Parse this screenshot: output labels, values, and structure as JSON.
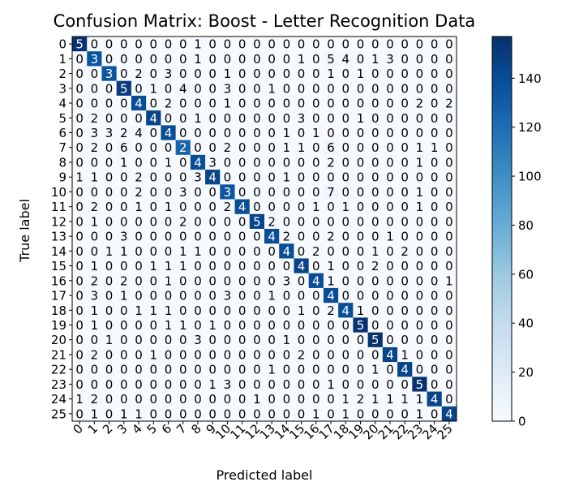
{
  "chart_data": {
    "type": "heatmap",
    "title": "Confusion Matrix: Boost - Letter Recognition Data",
    "xlabel": "Predicted label",
    "ylabel": "True label",
    "x_tick_labels": [
      "0",
      "1",
      "2",
      "3",
      "4",
      "5",
      "6",
      "7",
      "8",
      "9",
      "10",
      "11",
      "12",
      "13",
      "14",
      "15",
      "16",
      "17",
      "18",
      "19",
      "20",
      "21",
      "22",
      "23",
      "24",
      "25"
    ],
    "y_tick_labels": [
      "0",
      "1",
      "2",
      "3",
      "4",
      "5",
      "6",
      "7",
      "8",
      "9",
      "10",
      "11",
      "12",
      "13",
      "14",
      "15",
      "16",
      "17",
      "18",
      "19",
      "20",
      "21",
      "22",
      "23",
      "24",
      "25"
    ],
    "colormap": "Blues",
    "colorbar": {
      "min": 0,
      "max": 157,
      "ticks": [
        0,
        20,
        40,
        60,
        80,
        100,
        120,
        140
      ]
    },
    "matrix": [
      [
        155,
        0,
        0,
        0,
        0,
        0,
        0,
        0,
        1,
        0,
        0,
        0,
        0,
        0,
        0,
        0,
        0,
        0,
        0,
        0,
        0,
        0,
        0,
        0,
        0,
        0
      ],
      [
        0,
        135,
        0,
        0,
        0,
        0,
        0,
        0,
        1,
        0,
        0,
        0,
        0,
        0,
        0,
        1,
        0,
        5,
        4,
        0,
        1,
        3,
        0,
        0,
        0,
        0
      ],
      [
        0,
        0,
        135,
        0,
        2,
        0,
        3,
        0,
        0,
        0,
        1,
        0,
        0,
        0,
        0,
        0,
        0,
        1,
        0,
        1,
        0,
        0,
        0,
        0,
        0,
        0
      ],
      [
        0,
        0,
        0,
        150,
        0,
        1,
        0,
        4,
        0,
        0,
        3,
        0,
        0,
        1,
        0,
        0,
        0,
        0,
        0,
        0,
        0,
        0,
        0,
        0,
        0,
        0
      ],
      [
        0,
        0,
        0,
        0,
        140,
        0,
        2,
        0,
        0,
        0,
        1,
        0,
        0,
        0,
        0,
        0,
        0,
        0,
        0,
        0,
        0,
        0,
        0,
        2,
        0,
        2
      ],
      [
        0,
        2,
        0,
        0,
        0,
        145,
        0,
        0,
        1,
        0,
        0,
        0,
        0,
        0,
        0,
        3,
        0,
        0,
        0,
        1,
        0,
        0,
        0,
        0,
        0,
        0
      ],
      [
        0,
        3,
        3,
        2,
        4,
        0,
        140,
        0,
        0,
        0,
        0,
        0,
        0,
        0,
        1,
        0,
        1,
        0,
        0,
        0,
        0,
        0,
        0,
        0,
        0,
        0
      ],
      [
        0,
        2,
        0,
        6,
        0,
        0,
        0,
        125,
        0,
        0,
        2,
        0,
        0,
        0,
        1,
        1,
        0,
        6,
        0,
        0,
        0,
        0,
        0,
        1,
        1,
        0
      ],
      [
        0,
        0,
        0,
        1,
        0,
        0,
        1,
        0,
        140,
        3,
        0,
        0,
        0,
        0,
        0,
        0,
        0,
        2,
        0,
        0,
        0,
        0,
        0,
        1,
        0,
        0
      ],
      [
        1,
        1,
        0,
        0,
        2,
        0,
        0,
        0,
        3,
        145,
        0,
        0,
        0,
        0,
        1,
        0,
        0,
        0,
        0,
        0,
        0,
        0,
        0,
        0,
        0,
        0
      ],
      [
        0,
        0,
        0,
        0,
        2,
        0,
        0,
        3,
        0,
        0,
        135,
        0,
        0,
        0,
        0,
        0,
        0,
        7,
        0,
        0,
        0,
        0,
        0,
        1,
        0,
        0
      ],
      [
        0,
        2,
        0,
        0,
        1,
        0,
        1,
        0,
        0,
        0,
        2,
        140,
        0,
        0,
        0,
        0,
        1,
        0,
        1,
        0,
        0,
        0,
        0,
        1,
        0,
        0
      ],
      [
        0,
        1,
        0,
        0,
        0,
        0,
        0,
        2,
        0,
        0,
        0,
        0,
        145,
        2,
        0,
        0,
        0,
        0,
        0,
        0,
        0,
        0,
        0,
        0,
        0,
        0
      ],
      [
        0,
        0,
        0,
        3,
        0,
        0,
        0,
        0,
        0,
        0,
        0,
        0,
        0,
        140,
        2,
        0,
        0,
        2,
        0,
        0,
        0,
        1,
        0,
        0,
        0,
        0
      ],
      [
        0,
        0,
        1,
        1,
        0,
        0,
        0,
        1,
        1,
        0,
        0,
        0,
        0,
        0,
        140,
        0,
        2,
        0,
        0,
        0,
        1,
        0,
        2,
        0,
        0,
        0
      ],
      [
        0,
        1,
        0,
        0,
        0,
        1,
        1,
        1,
        0,
        0,
        0,
        0,
        0,
        0,
        0,
        145,
        0,
        1,
        0,
        0,
        2,
        0,
        0,
        0,
        0,
        0
      ],
      [
        0,
        2,
        0,
        2,
        0,
        0,
        1,
        0,
        0,
        0,
        0,
        0,
        0,
        0,
        3,
        0,
        140,
        1,
        0,
        0,
        0,
        0,
        0,
        0,
        0,
        1
      ],
      [
        0,
        3,
        0,
        1,
        0,
        0,
        0,
        0,
        0,
        0,
        3,
        0,
        0,
        1,
        0,
        0,
        0,
        140,
        0,
        0,
        0,
        0,
        0,
        0,
        0,
        0
      ],
      [
        0,
        1,
        0,
        0,
        1,
        1,
        1,
        0,
        0,
        0,
        0,
        0,
        0,
        0,
        0,
        1,
        0,
        2,
        140,
        1,
        0,
        0,
        0,
        0,
        0,
        0
      ],
      [
        0,
        1,
        0,
        0,
        0,
        0,
        1,
        1,
        0,
        1,
        0,
        0,
        0,
        0,
        0,
        0,
        0,
        0,
        0,
        155,
        0,
        0,
        0,
        0,
        0,
        0
      ],
      [
        0,
        0,
        1,
        0,
        0,
        0,
        0,
        0,
        3,
        0,
        0,
        0,
        0,
        0,
        1,
        0,
        0,
        0,
        0,
        0,
        155,
        0,
        0,
        0,
        0,
        0
      ],
      [
        0,
        2,
        0,
        0,
        0,
        1,
        0,
        0,
        0,
        0,
        0,
        0,
        0,
        0,
        0,
        2,
        0,
        0,
        0,
        0,
        0,
        145,
        1,
        0,
        0,
        0
      ],
      [
        0,
        0,
        0,
        0,
        0,
        0,
        0,
        0,
        0,
        0,
        0,
        0,
        0,
        1,
        0,
        0,
        0,
        0,
        0,
        0,
        1,
        0,
        145,
        0,
        0,
        0
      ],
      [
        0,
        0,
        0,
        0,
        0,
        0,
        0,
        0,
        0,
        1,
        3,
        0,
        0,
        0,
        0,
        0,
        0,
        1,
        0,
        0,
        0,
        0,
        0,
        155,
        0,
        0
      ],
      [
        1,
        2,
        0,
        0,
        0,
        0,
        0,
        0,
        0,
        0,
        0,
        0,
        1,
        0,
        0,
        0,
        0,
        0,
        1,
        2,
        1,
        1,
        1,
        1,
        145,
        0
      ],
      [
        0,
        1,
        0,
        1,
        1,
        0,
        0,
        0,
        0,
        0,
        0,
        0,
        0,
        0,
        0,
        0,
        1,
        0,
        1,
        0,
        0,
        0,
        0,
        1,
        0,
        145
      ]
    ],
    "cell_text_overrides": {
      "0,0": "5",
      "1,1": "3",
      "2,2": "3",
      "3,3": "5",
      "4,4": "4",
      "5,5": "4",
      "6,6": "4",
      "7,7": "2",
      "8,8": "4",
      "9,9": "4",
      "10,10": "3",
      "11,11": "4",
      "12,12": "5",
      "13,13": "4",
      "14,14": "4",
      "15,15": "4",
      "16,16": "4",
      "17,17": "4",
      "18,18": "4",
      "19,19": "5",
      "20,20": "5",
      "21,21": "4",
      "22,22": "4",
      "23,23": "5",
      "24,24": "4",
      "25,25": "4"
    }
  }
}
